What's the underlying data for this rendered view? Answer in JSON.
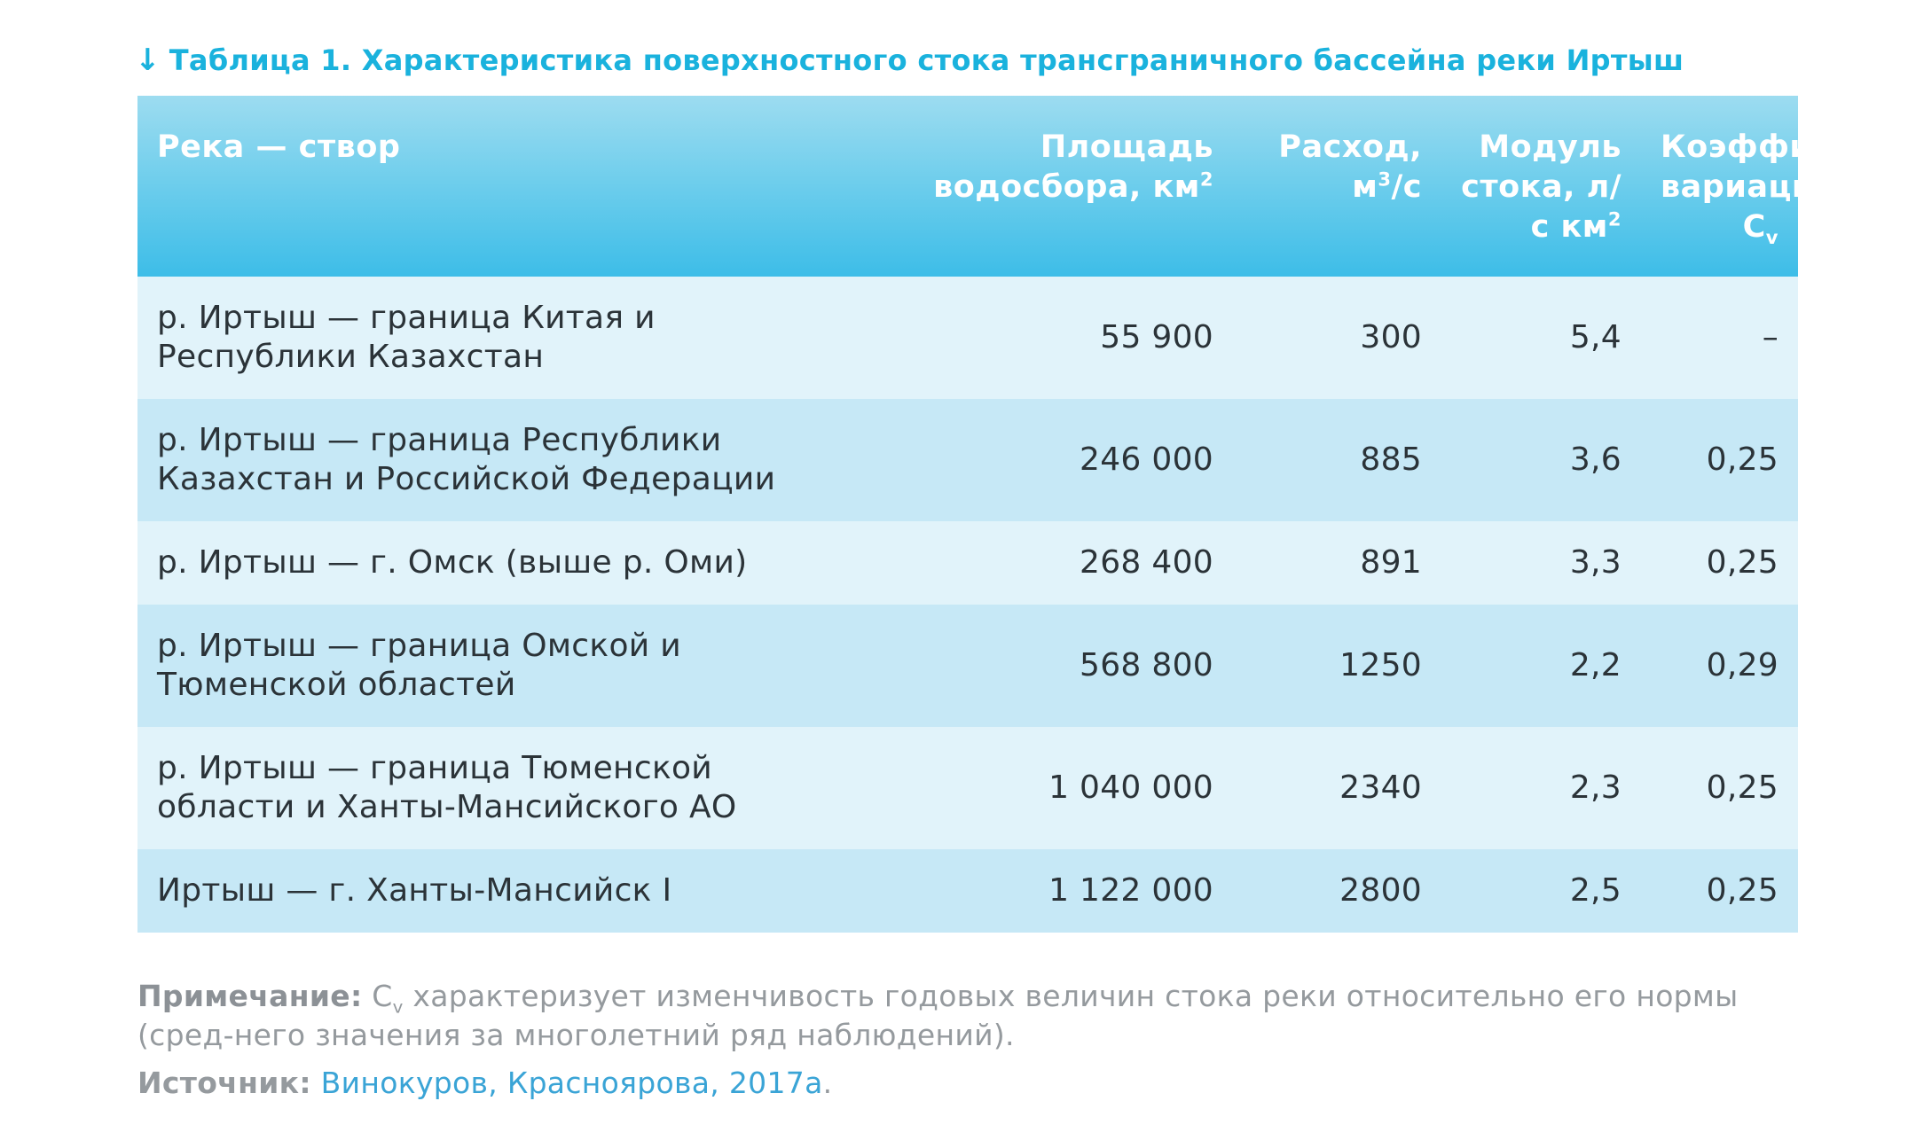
{
  "caption": {
    "arrow": "↓",
    "text": "Таблица 1. Характеристика поверхностного стока трансграничного бассейна реки Иртыш"
  },
  "table": {
    "headers": [
      {
        "main": "Река — створ",
        "sup": "",
        "sub": ""
      },
      {
        "main": "Площадь водосбора, км",
        "sup": "2",
        "sub": ""
      },
      {
        "main": "Расход, м",
        "sup": "3",
        "tail": "/с",
        "sub": ""
      },
      {
        "main": "Модуль стока, л/с км",
        "sup": "2",
        "sub": ""
      },
      {
        "main": "Коэффициент вариации, C",
        "sup": "",
        "sub": "v"
      }
    ],
    "rows": [
      {
        "river": "р. Иртыш — граница Китая и Республики Казахстан",
        "area": "55 900",
        "flow": "300",
        "module": "5,4",
        "cv": "–"
      },
      {
        "river": "р. Иртыш — граница Республики Казахстан и Российской Федерации",
        "area": "246 000",
        "flow": "885",
        "module": "3,6",
        "cv": "0,25"
      },
      {
        "river": "р. Иртыш — г. Омск (выше р. Оми)",
        "area": "268 400",
        "flow": "891",
        "module": "3,3",
        "cv": "0,25"
      },
      {
        "river": "р. Иртыш — граница Омской и Тюменской областей",
        "area": "568 800",
        "flow": "1250",
        "module": "2,2",
        "cv": "0,29"
      },
      {
        "river": "р. Иртыш — граница Тюменской области и Ханты-Мансийского АО",
        "area": "1 040 000",
        "flow": "2340",
        "module": "2,3",
        "cv": "0,25"
      },
      {
        "river": "Иртыш — г. Ханты-Мансийск I",
        "area": "1 122 000",
        "flow": "2800",
        "module": "2,5",
        "cv": "0,25"
      }
    ]
  },
  "note": {
    "label": "Примечание:",
    "cv_symbol": "C",
    "cv_sub": "v",
    "text": "характеризует изменчивость годовых величин стока реки относительно его нормы (сред-него значения за многолетний ряд наблюдений)."
  },
  "source": {
    "label": "Источник:",
    "link_text": "Винокуров, Красноярова, 2017а",
    "suffix": "."
  },
  "colors": {
    "accent": "#1ab2dd",
    "header_top": "#9ddcf0",
    "header_bottom": "#3dbde8",
    "row_light": "#e1f3fa",
    "row_dark": "#c6e8f6",
    "note_text": "#959a9e",
    "link": "#3aa4d6"
  }
}
